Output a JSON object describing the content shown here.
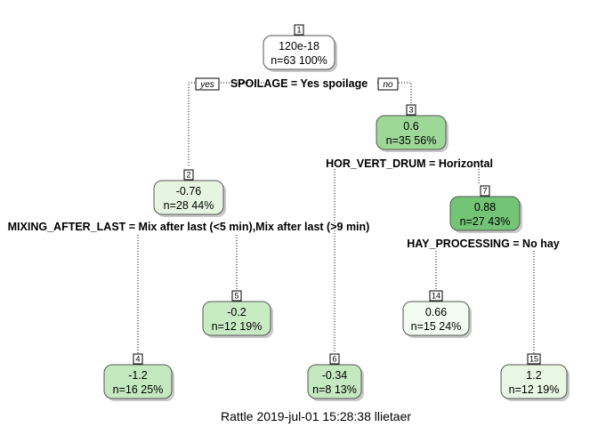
{
  "branch_labels": {
    "yes": "yes",
    "no": "no"
  },
  "nodes": [
    {
      "id": "1",
      "value": "120e-18",
      "stats": "n=63  100%",
      "fill": "#ffffff"
    },
    {
      "id": "2",
      "value": "-0.76",
      "stats": "n=28  44%",
      "fill": "#e6f5e1"
    },
    {
      "id": "3",
      "value": "0.6",
      "stats": "n=35  56%",
      "fill": "#9ed898"
    },
    {
      "id": "4",
      "value": "-1.2",
      "stats": "n=16  25%",
      "fill": "#c4e8bf"
    },
    {
      "id": "5",
      "value": "-0.2",
      "stats": "n=12  19%",
      "fill": "#c9ebc4"
    },
    {
      "id": "6",
      "value": "-0.34",
      "stats": "n=8  13%",
      "fill": "#c4e8bf"
    },
    {
      "id": "7",
      "value": "0.88",
      "stats": "n=27  43%",
      "fill": "#74c476"
    },
    {
      "id": "14",
      "value": "0.66",
      "stats": "n=15  24%",
      "fill": "#f4fbf2"
    },
    {
      "id": "15",
      "value": "1.2",
      "stats": "n=12  19%",
      "fill": "#e8f6e4"
    }
  ],
  "splits": {
    "root": "SPOILAGE = Yes spoilage",
    "node2": "MIXING_AFTER_LAST = Mix after last (<5 min),Mix after last (>9 min)",
    "node3": "HOR_VERT_DRUM = Horizontal",
    "node7": "HAY_PROCESSING = No hay"
  },
  "caption": "Rattle 2019-jul-01 15:28:38 llietaer",
  "colors": {
    "edge": "#000000",
    "node_border": "#555555"
  }
}
